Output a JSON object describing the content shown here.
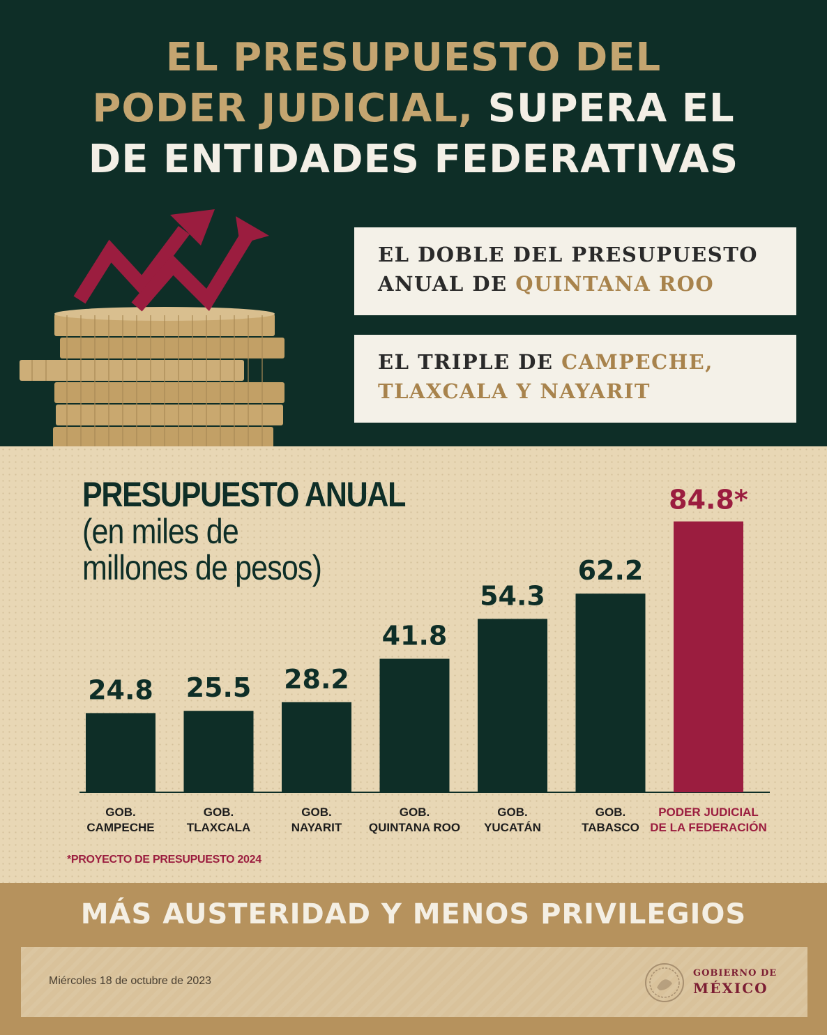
{
  "headline": {
    "line1": "EL PRESUPUESTO DEL",
    "line2_gold": "PODER JUDICIAL,",
    "line2_white": " SUPERA EL",
    "line3": "DE ENTIDADES FEDERATIVAS"
  },
  "callouts": [
    {
      "line1": "EL DOBLE DEL PRESUPUESTO",
      "line2_text": "ANUAL DE ",
      "line2_highlight": "QUINTANA ROO"
    },
    {
      "line1_text": "EL TRIPLE DE ",
      "line1_highlight": "CAMPECHE,",
      "line2_highlight": "TLAXCALA Y NAYARIT"
    }
  ],
  "icons": {
    "coins": "coin-stack-icon",
    "arrows": "rising-arrows-icon",
    "seal": "mexico-seal-icon"
  },
  "colors": {
    "dark_green": "#0e2e27",
    "gold": "#c4a570",
    "maroon": "#9b1d3f",
    "beige": "#e8d7b5",
    "band": "#b6925d"
  },
  "chart_data": {
    "type": "bar",
    "title": "PRESUPUESTO ANUAL",
    "subtitle_line1": "(en miles de",
    "subtitle_line2": "millones de pesos)",
    "categories": [
      [
        "GOB.",
        "CAMPECHE"
      ],
      [
        "GOB.",
        "TLAXCALA"
      ],
      [
        "GOB.",
        "NAYARIT"
      ],
      [
        "GOB.",
        "QUINTANA ROO"
      ],
      [
        "GOB.",
        "YUCATÁN"
      ],
      [
        "GOB.",
        "TABASCO"
      ],
      [
        "PODER JUDICIAL",
        "DE LA FEDERACIÓN"
      ]
    ],
    "values": [
      24.8,
      25.5,
      28.2,
      41.8,
      54.3,
      62.2,
      84.8
    ],
    "value_labels": [
      "24.8",
      "25.5",
      "28.2",
      "41.8",
      "54.3",
      "62.2",
      "84.8*"
    ],
    "bar_colors": [
      "#0e2e27",
      "#0e2e27",
      "#0e2e27",
      "#0e2e27",
      "#0e2e27",
      "#0e2e27",
      "#9b1d3f"
    ],
    "ylim": [
      0,
      100
    ],
    "footnote": "*PROYECTO DE PRESUPUESTO 2024"
  },
  "slogan": "MÁS AUSTERIDAD Y MENOS PRIVILEGIOS",
  "footer": {
    "date": "Miércoles 18 de octubre de 2023",
    "gov_line1": "GOBIERNO DE",
    "gov_line2": "MÉXICO"
  }
}
